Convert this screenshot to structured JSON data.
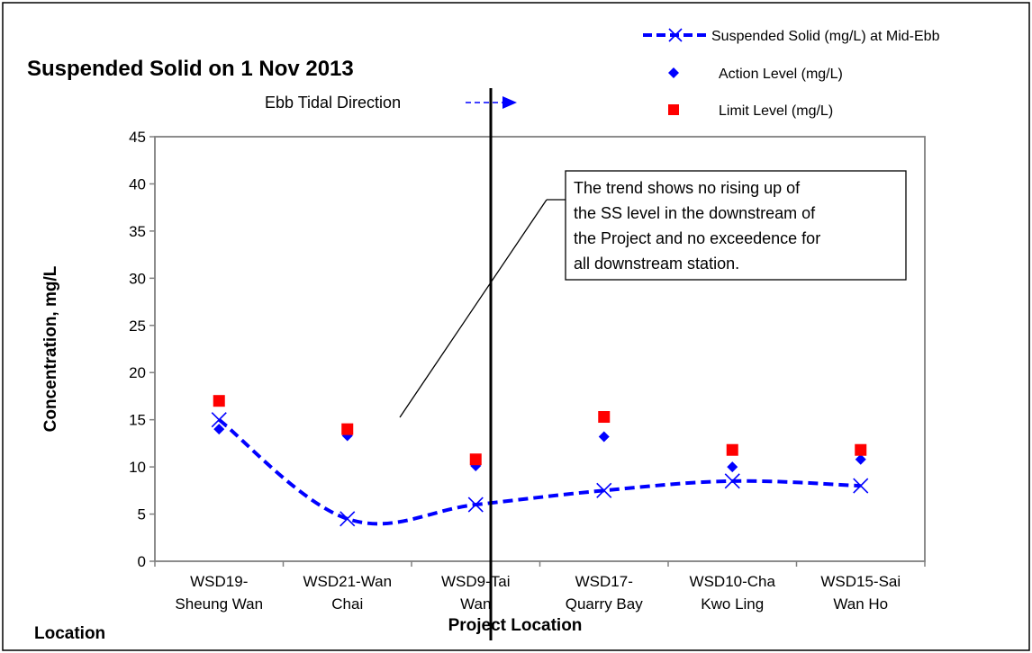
{
  "chart_data": {
    "type": "line",
    "title": "Suspended Solid on 1 Nov 2013",
    "xlabel": "Project Location",
    "ylabel": "Concentration, mg/L",
    "corner_label": "Location",
    "categories": [
      [
        "WSD19-",
        "Sheung Wan"
      ],
      [
        "WSD21-Wan",
        "Chai"
      ],
      [
        "WSD9-Tai",
        "Wan"
      ],
      [
        "WSD17-",
        "Quarry Bay"
      ],
      [
        "WSD10-Cha",
        "Kwo Ling"
      ],
      [
        "WSD15-Sai",
        "Wan Ho"
      ]
    ],
    "ylim": [
      0,
      45
    ],
    "yticks": [
      "0",
      "5",
      "10",
      "15",
      "20",
      "25",
      "30",
      "35",
      "40",
      "45"
    ],
    "grid": false,
    "legend_position": "top-right",
    "series": [
      {
        "name": "Suspended Solid (mg/L) at Mid-Ebb",
        "style": "dashed-line-x-marker",
        "color": "#0000ff",
        "values": [
          15,
          4.5,
          6,
          7.5,
          8.5,
          8
        ]
      },
      {
        "name": "Action Level (mg/L)",
        "style": "diamond-marker",
        "color": "#0000ff",
        "values": [
          14,
          13.3,
          10.1,
          13.2,
          10,
          10.8
        ]
      },
      {
        "name": "Limit Level (mg/L)",
        "style": "square-marker",
        "color": "#ff0000",
        "values": [
          17,
          14,
          10.8,
          15.3,
          11.8,
          11.8
        ]
      }
    ],
    "ebb_direction": {
      "text": "Ebb Tidal Direction",
      "color": "#0000ff"
    },
    "project_marker_after_category": "WSD9-Tai",
    "annotation": {
      "lines": [
        "The trend shows no rising up of",
        "the SS level in the downstream of",
        "the Project and no exceedence for",
        "all downstream station."
      ]
    }
  }
}
